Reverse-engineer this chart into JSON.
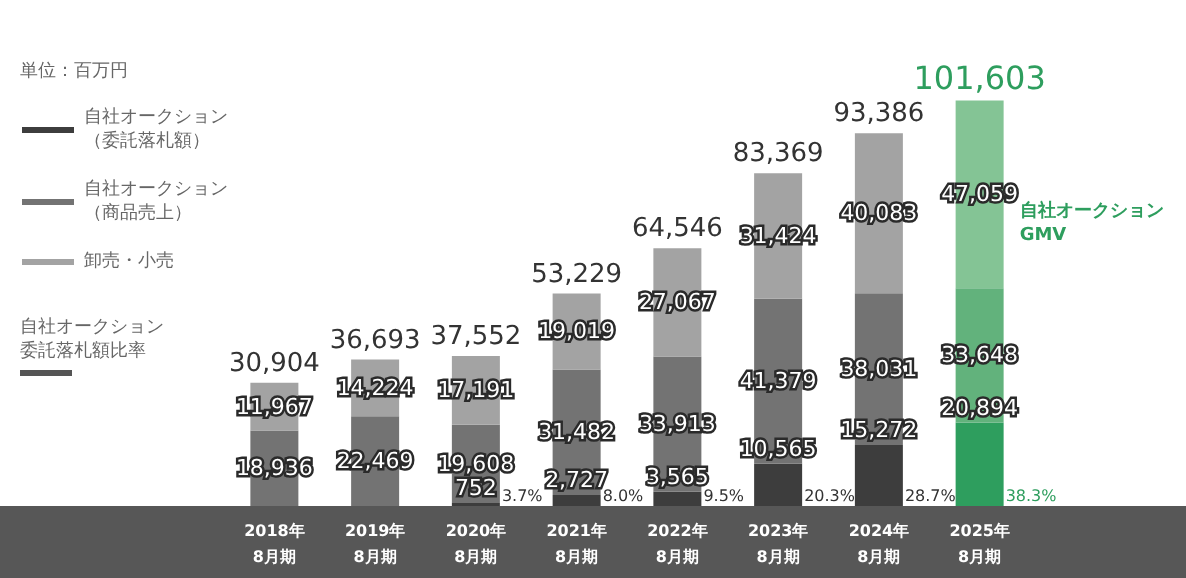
{
  "chart_data": {
    "type": "bar",
    "stacked": true,
    "tick_labels": "x",
    "legend": "left",
    "categories": [
      "2018年\n8月期",
      "2019年\n8月期",
      "2020年\n8月期",
      "2021年\n8月期",
      "2022年\n8月期",
      "2023年\n8月期",
      "2024年\n8月期",
      "2025年\n8月期"
    ],
    "series": [
      {
        "name": "自社オークション（委託落札額）",
        "color": "#3d3d3d",
        "colors": [
          "#3d3d3d",
          "#3d3d3d",
          "#3d3d3d",
          "#3d3d3d",
          "#3d3d3d",
          "#3d3d3d",
          "#3d3d3d",
          "#2e9e5e"
        ],
        "values": [
          null,
          null,
          752,
          2727,
          3565,
          10565,
          15272,
          20894
        ],
        "value_labels": [
          null,
          null,
          "752",
          "2,727",
          "3,565",
          "10,565",
          "15,272",
          "20,894"
        ]
      },
      {
        "name": "自社オークション（商品売上）",
        "color": "#737373",
        "colors": [
          "#737373",
          "#737373",
          "#737373",
          "#737373",
          "#737373",
          "#737373",
          "#737373",
          "#62b27c"
        ],
        "values": [
          18936,
          22469,
          19608,
          31482,
          33913,
          41379,
          38031,
          33648
        ],
        "value_labels": [
          "18,936",
          "22,469",
          "19,608",
          "31,482",
          "33,913",
          "41,379",
          "38,031",
          "33,648"
        ]
      },
      {
        "name": "卸売・小売",
        "color": "#a3a3a3",
        "colors": [
          "#a3a3a3",
          "#a3a3a3",
          "#a3a3a3",
          "#a3a3a3",
          "#a3a3a3",
          "#a3a3a3",
          "#a3a3a3",
          "#84c495"
        ],
        "values": [
          11967,
          14224,
          17191,
          19019,
          27067,
          31424,
          40083,
          47059
        ],
        "value_labels": [
          "11,967",
          "14,224",
          "17,191",
          "19,019",
          "27,067",
          "31,424",
          "40,083",
          "47,059"
        ]
      }
    ],
    "totals": [
      "30,904",
      "36,693",
      "37,552",
      "53,229",
      "64,546",
      "83,369",
      "93,386",
      "101,603"
    ],
    "annotations": [
      "単位：百万円",
      "自社オークション委託落札額比率",
      "自社オークションGMV",
      {
        "text": "3.7%",
        "x": "2020年\n8月期"
      },
      {
        "text": "8.0%",
        "x": "2021年\n8月期"
      },
      {
        "text": "9.5%",
        "x": "2022年\n8月期"
      },
      {
        "text": "20.3%",
        "x": "2023年\n8月期"
      },
      {
        "text": "28.7%",
        "x": "2024年\n8月期"
      },
      {
        "text": "38.3%",
        "x": "2025年\n8月期"
      }
    ]
  }
}
